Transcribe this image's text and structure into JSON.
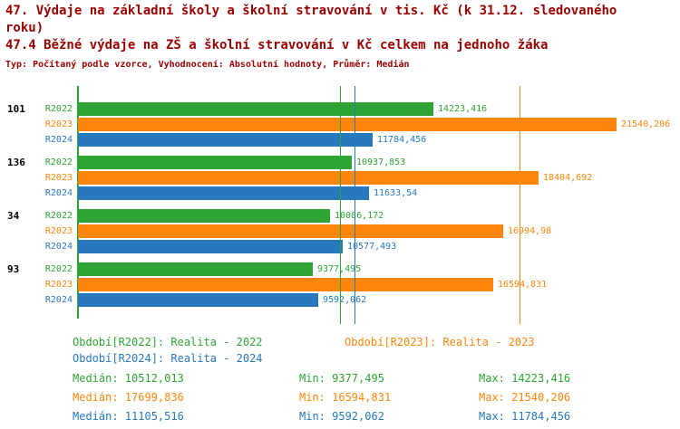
{
  "header": {
    "title": "47. Výdaje na základní školy a školní stravování v tis. Kč (k 31.12. sledovaného roku)",
    "subtitle": "47.4 Běžné výdaje na ZŠ a školní stravování v Kč celkem na jednoho žáka",
    "meta": "Typ: Počítaný podle vzorce, Vyhodnocení: Absolutní hodnoty, Průměr: Medián"
  },
  "colors": {
    "title": "#990000",
    "R2022": "#2EA434",
    "R2023": "#FF860D",
    "R2024": "#2878BE",
    "group_label": "#000000"
  },
  "chart_data": {
    "type": "bar",
    "orientation": "horizontal",
    "value_unit": "Kč",
    "xmin": 0,
    "xmax": 21540.206,
    "series": [
      "R2022",
      "R2023",
      "R2024"
    ],
    "groups": [
      {
        "id": "101",
        "bars": [
          {
            "series": "R2022",
            "value": 14223.416,
            "label": "14223,416"
          },
          {
            "series": "R2023",
            "value": 21540.206,
            "label": "21540,206"
          },
          {
            "series": "R2024",
            "value": 11784.456,
            "label": "11784,456"
          }
        ]
      },
      {
        "id": "136",
        "bars": [
          {
            "series": "R2022",
            "value": 10937.853,
            "label": "10937,853"
          },
          {
            "series": "R2023",
            "value": 18404.692,
            "label": "18404,692"
          },
          {
            "series": "R2024",
            "value": 11633.54,
            "label": "11633,54"
          }
        ]
      },
      {
        "id": "34",
        "bars": [
          {
            "series": "R2022",
            "value": 10086.172,
            "label": "10086,172"
          },
          {
            "series": "R2023",
            "value": 16994.98,
            "label": "16994,98"
          },
          {
            "series": "R2024",
            "value": 10577.493,
            "label": "10577,493"
          }
        ]
      },
      {
        "id": "93",
        "bars": [
          {
            "series": "R2022",
            "value": 9377.495,
            "label": "9377,495"
          },
          {
            "series": "R2023",
            "value": 16594.831,
            "label": "16594,831"
          },
          {
            "series": "R2024",
            "value": 9592.062,
            "label": "9592,062"
          }
        ]
      }
    ],
    "median_lines": [
      {
        "series": "R2022",
        "value": 10512.013
      },
      {
        "series": "R2023",
        "value": 17699.836
      },
      {
        "series": "R2024",
        "value": 11105.516
      }
    ]
  },
  "legend": [
    {
      "series": "R2022",
      "label": "Období[R2022]: Realita - 2022"
    },
    {
      "series": "R2023",
      "label": "Období[R2023]: Realita - 2023"
    },
    {
      "series": "R2024",
      "label": "Období[R2024]: Realita - 2024"
    }
  ],
  "stats": [
    {
      "series": "R2022",
      "median": "Medián: 10512,013",
      "min": "Min: 9377,495",
      "max": "Max: 14223,416"
    },
    {
      "series": "R2023",
      "median": "Medián: 17699,836",
      "min": "Min: 16594,831",
      "max": "Max: 21540,206"
    },
    {
      "series": "R2024",
      "median": "Medián: 11105,516",
      "min": "Min: 9592,062",
      "max": "Max: 11784,456"
    }
  ]
}
